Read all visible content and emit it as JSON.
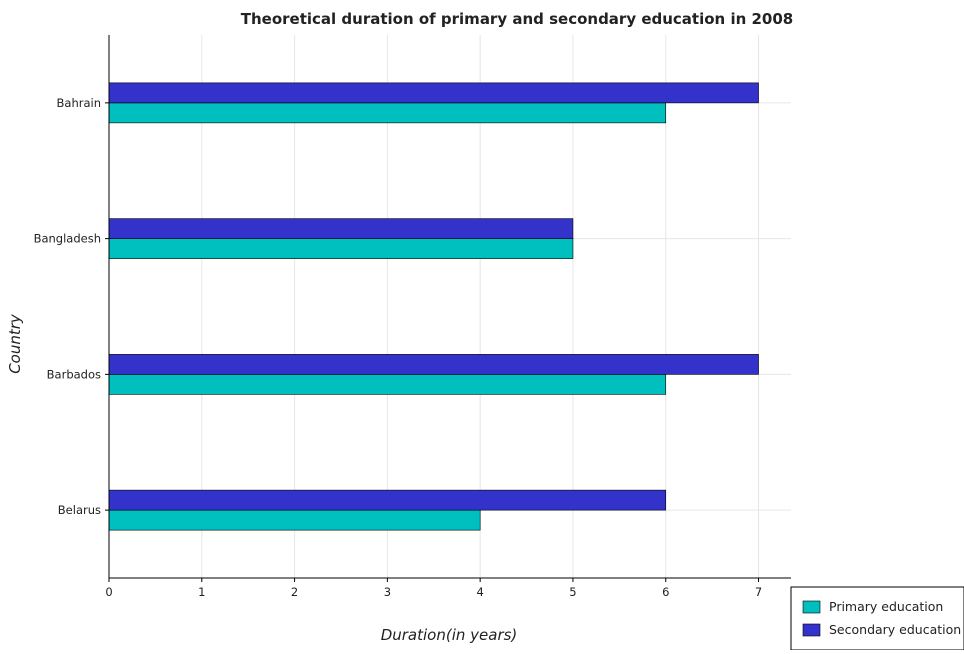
{
  "chart_data": {
    "type": "bar",
    "orientation": "horizontal",
    "title": "Theoretical duration of primary and secondary education in 2008",
    "xlabel": "Duration(in years)",
    "ylabel": "Country",
    "categories": [
      "Bahrain",
      "Bangladesh",
      "Barbados",
      "Belarus"
    ],
    "series": [
      {
        "name": "Primary education",
        "values": [
          6,
          5,
          6,
          4
        ],
        "color": "#00bfbf"
      },
      {
        "name": "Secondary education",
        "values": [
          7,
          5,
          7,
          6
        ],
        "color": "#3333cc"
      }
    ],
    "xlim": [
      0,
      7.35
    ],
    "xticks": [
      "0",
      "1",
      "2",
      "3",
      "4",
      "5",
      "6",
      "7"
    ],
    "grid": true,
    "legend_position": "bottom-right"
  }
}
